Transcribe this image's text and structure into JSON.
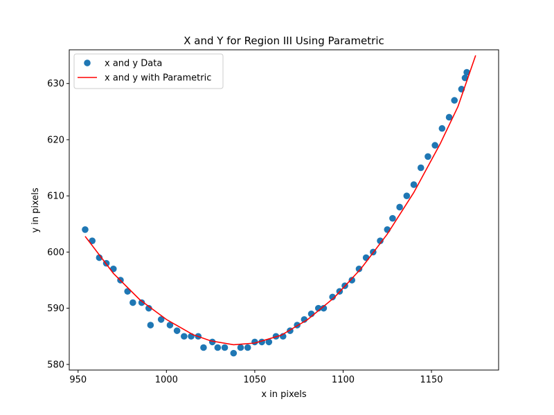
{
  "chart_data": {
    "type": "scatter",
    "title": "X and Y for Region III Using Parametric",
    "xlabel": "x in pixels",
    "ylabel": "y in pixels",
    "xlim": [
      945,
      1188
    ],
    "ylim": [
      579,
      636
    ],
    "xticks": [
      950,
      1000,
      1050,
      1100,
      1150
    ],
    "yticks": [
      580,
      590,
      600,
      610,
      620,
      630
    ],
    "grid": false,
    "legend_position": "top-left",
    "series": [
      {
        "name": "x and y Data",
        "kind": "scatter",
        "color": "#1f77b4",
        "points": [
          [
            954,
            604
          ],
          [
            958,
            602
          ],
          [
            962,
            599
          ],
          [
            966,
            598
          ],
          [
            970,
            597
          ],
          [
            974,
            595
          ],
          [
            978,
            593
          ],
          [
            981,
            591
          ],
          [
            986,
            591
          ],
          [
            990,
            590
          ],
          [
            991,
            587
          ],
          [
            997,
            588
          ],
          [
            1002,
            587
          ],
          [
            1006,
            586
          ],
          [
            1010,
            585
          ],
          [
            1014,
            585
          ],
          [
            1018,
            585
          ],
          [
            1021,
            583
          ],
          [
            1026,
            584
          ],
          [
            1029,
            583
          ],
          [
            1033,
            583
          ],
          [
            1038,
            582
          ],
          [
            1042,
            583
          ],
          [
            1046,
            583
          ],
          [
            1050,
            584
          ],
          [
            1054,
            584
          ],
          [
            1058,
            584
          ],
          [
            1062,
            585
          ],
          [
            1066,
            585
          ],
          [
            1070,
            586
          ],
          [
            1074,
            587
          ],
          [
            1078,
            588
          ],
          [
            1082,
            589
          ],
          [
            1086,
            590
          ],
          [
            1089,
            590
          ],
          [
            1094,
            592
          ],
          [
            1098,
            593
          ],
          [
            1101,
            594
          ],
          [
            1105,
            595
          ],
          [
            1109,
            597
          ],
          [
            1113,
            599
          ],
          [
            1117,
            600
          ],
          [
            1121,
            602
          ],
          [
            1125,
            604
          ],
          [
            1128,
            606
          ],
          [
            1132,
            608
          ],
          [
            1136,
            610
          ],
          [
            1140,
            612
          ],
          [
            1144,
            615
          ],
          [
            1148,
            617
          ],
          [
            1152,
            619
          ],
          [
            1156,
            622
          ],
          [
            1160,
            624
          ],
          [
            1163,
            627
          ],
          [
            1167,
            629
          ],
          [
            1169,
            631
          ],
          [
            1170,
            632
          ]
        ]
      },
      {
        "name": "x and y with Parametric",
        "kind": "line",
        "color": "#ff0000",
        "points": [
          [
            954,
            602.8
          ],
          [
            970,
            596.2
          ],
          [
            985,
            591.5
          ],
          [
            1000,
            588.0
          ],
          [
            1015,
            585.3
          ],
          [
            1025,
            584.2
          ],
          [
            1038,
            583.5
          ],
          [
            1050,
            583.8
          ],
          [
            1065,
            585.2
          ],
          [
            1080,
            588.0
          ],
          [
            1095,
            591.9
          ],
          [
            1110,
            597.0
          ],
          [
            1125,
            603.2
          ],
          [
            1140,
            610.6
          ],
          [
            1155,
            619.3
          ],
          [
            1165,
            625.9
          ],
          [
            1175,
            635.0
          ]
        ]
      }
    ]
  }
}
